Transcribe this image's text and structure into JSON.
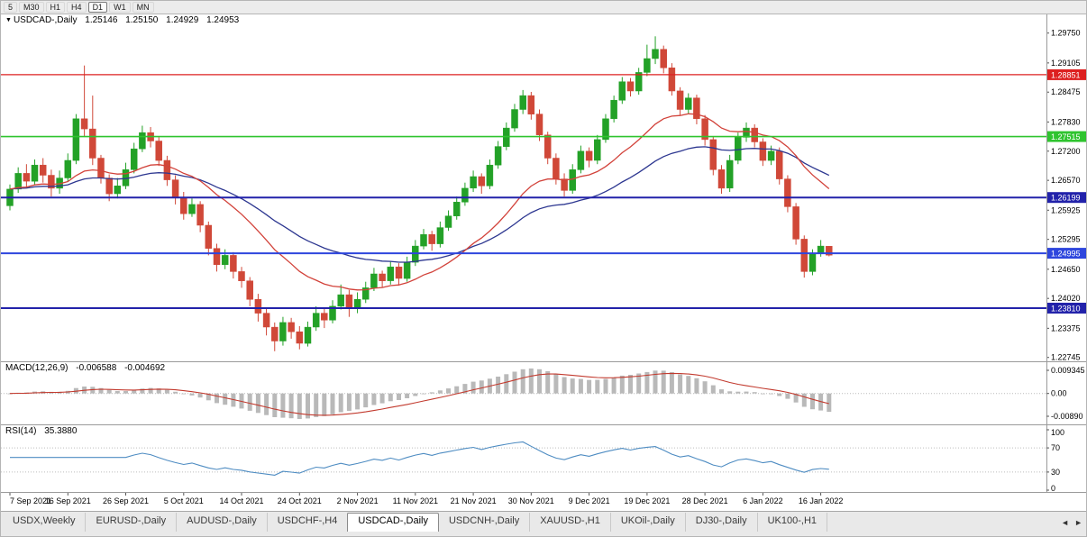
{
  "timeframe_toolbar": {
    "items": [
      "5",
      "M30",
      "H1",
      "H4",
      "D1",
      "W1",
      "MN"
    ],
    "active": "D1"
  },
  "chart_header": {
    "symbol": "USDCAD-,Daily",
    "open": "1.25146",
    "high": "1.25150",
    "low": "1.24929",
    "close": "1.24953"
  },
  "price_axis": {
    "ticks": [
      "1.29750",
      "1.29105",
      "1.28475",
      "1.27830",
      "1.27200",
      "1.26570",
      "1.25925",
      "1.25295",
      "1.24650",
      "1.24020",
      "1.23375",
      "1.22745"
    ]
  },
  "hlines": [
    {
      "value": 1.28851,
      "label": "1.28851",
      "color": "#dd2020",
      "width": 1.2
    },
    {
      "value": 1.27515,
      "label": "1.27515",
      "color": "#2fc42f",
      "width": 1.6
    },
    {
      "value": 1.26199,
      "label": "1.26199",
      "color": "#2222aa",
      "width": 2
    },
    {
      "value": 1.24995,
      "label": "1.24995",
      "color": "#2e46dd",
      "width": 2
    },
    {
      "value": 1.2381,
      "label": "1.23810",
      "color": "#2222aa",
      "width": 2
    }
  ],
  "date_axis": {
    "labels": [
      "7 Sep 2021",
      "16 Sep 2021",
      "26 Sep 2021",
      "5 Oct 2021",
      "14 Oct 2021",
      "24 Oct 2021",
      "2 Nov 2021",
      "11 Nov 2021",
      "21 Nov 2021",
      "30 Nov 2021",
      "9 Dec 2021",
      "19 Dec 2021",
      "28 Dec 2021",
      "6 Jan 2022",
      "16 Jan 2022"
    ]
  },
  "indicators": {
    "macd": {
      "label": "MACD(12,26,9)",
      "value_main": "-0.006588",
      "value_signal": "-0.004692",
      "axis_max": "0.009345",
      "axis_zero": "0.00",
      "axis_min": "-0.00890"
    },
    "rsi": {
      "label": "RSI(14)",
      "value": "35.3880",
      "axis": [
        "100",
        "70",
        "30",
        "0"
      ],
      "levels": [
        70,
        30
      ]
    }
  },
  "tabs": {
    "items": [
      "USDX,Weekly",
      "EURUSD-,Daily",
      "AUDUSD-,Daily",
      "USDCHF-,H4",
      "USDCAD-,Daily",
      "USDCNH-,Daily",
      "XAUUSD-,H1",
      "UKOil-,Daily",
      "DJ30-,Daily",
      "UK100-,H1"
    ],
    "active": "USDCAD-,Daily"
  },
  "tab_scroll": {
    "left_icon": "◄",
    "right_icon": "►"
  },
  "colors": {
    "bull": "#23a127",
    "bear": "#d04838",
    "ma_fast": "#d2423a",
    "ma_slow": "#2c3690",
    "macd_bar": "#b9b9b9",
    "macd_signal": "#c23a2e",
    "rsi_line": "#4e8cc2",
    "axis_text": "#000000",
    "separator": "#9a9a9a",
    "level_dotted": "#bcbcbc"
  },
  "chart_data": {
    "type": "candlestick",
    "symbol": "USDCAD",
    "period": "Daily",
    "ma_periods": {
      "fast": 20,
      "slow": 40
    },
    "macd_params": [
      12,
      26,
      9
    ],
    "rsi_period": 14,
    "price_range_visible": [
      1.2272,
      1.299
    ],
    "ohlc": [
      [
        1.2602,
        1.2648,
        1.2592,
        1.2638
      ],
      [
        1.2638,
        1.2685,
        1.263,
        1.2672
      ],
      [
        1.2672,
        1.2692,
        1.264,
        1.2655
      ],
      [
        1.2655,
        1.2702,
        1.2648,
        1.269
      ],
      [
        1.269,
        1.2705,
        1.2652,
        1.2668
      ],
      [
        1.2668,
        1.268,
        1.2622,
        1.264
      ],
      [
        1.264,
        1.2678,
        1.2628,
        1.2662
      ],
      [
        1.2662,
        1.2715,
        1.2655,
        1.27
      ],
      [
        1.27,
        1.28,
        1.2692,
        1.279
      ],
      [
        1.279,
        1.2905,
        1.2752,
        1.2768
      ],
      [
        1.2768,
        1.284,
        1.269,
        1.2705
      ],
      [
        1.2705,
        1.2712,
        1.265,
        1.2662
      ],
      [
        1.2662,
        1.267,
        1.2612,
        1.2628
      ],
      [
        1.2628,
        1.2662,
        1.2618,
        1.2645
      ],
      [
        1.2645,
        1.2695,
        1.2638,
        1.268
      ],
      [
        1.268,
        1.2738,
        1.2672,
        1.2725
      ],
      [
        1.2725,
        1.2775,
        1.2718,
        1.276
      ],
      [
        1.276,
        1.2772,
        1.2728,
        1.2742
      ],
      [
        1.2742,
        1.275,
        1.2688,
        1.27
      ],
      [
        1.27,
        1.271,
        1.2645,
        1.2658
      ],
      [
        1.2658,
        1.2668,
        1.2605,
        1.262
      ],
      [
        1.262,
        1.2632,
        1.2572,
        1.2585
      ],
      [
        1.2585,
        1.2618,
        1.2578,
        1.2605
      ],
      [
        1.2605,
        1.2612,
        1.2545,
        1.256
      ],
      [
        1.256,
        1.2568,
        1.2495,
        1.251
      ],
      [
        1.251,
        1.252,
        1.246,
        1.2475
      ],
      [
        1.2475,
        1.2508,
        1.2465,
        1.2495
      ],
      [
        1.2495,
        1.2502,
        1.2445,
        1.246
      ],
      [
        1.246,
        1.247,
        1.2425,
        1.244
      ],
      [
        1.244,
        1.2448,
        1.2385,
        1.24
      ],
      [
        1.24,
        1.2412,
        1.2352,
        1.237
      ],
      [
        1.237,
        1.238,
        1.2322,
        1.234
      ],
      [
        1.234,
        1.235,
        1.2288,
        1.231
      ],
      [
        1.231,
        1.2362,
        1.23,
        1.235
      ],
      [
        1.235,
        1.236,
        1.2315,
        1.233
      ],
      [
        1.233,
        1.2342,
        1.2292,
        1.2305
      ],
      [
        1.2305,
        1.2352,
        1.2298,
        1.234
      ],
      [
        1.234,
        1.2385,
        1.2332,
        1.237
      ],
      [
        1.237,
        1.238,
        1.2338,
        1.2355
      ],
      [
        1.2355,
        1.2398,
        1.2348,
        1.2385
      ],
      [
        1.2385,
        1.2432,
        1.2378,
        1.241
      ],
      [
        1.241,
        1.242,
        1.2362,
        1.238
      ],
      [
        1.238,
        1.2415,
        1.237,
        1.24
      ],
      [
        1.24,
        1.2438,
        1.2392,
        1.2425
      ],
      [
        1.2425,
        1.2468,
        1.2418,
        1.2455
      ],
      [
        1.2455,
        1.2462,
        1.2425,
        1.244
      ],
      [
        1.244,
        1.2482,
        1.2432,
        1.247
      ],
      [
        1.247,
        1.2478,
        1.243,
        1.2445
      ],
      [
        1.2445,
        1.2492,
        1.2438,
        1.248
      ],
      [
        1.248,
        1.2528,
        1.2472,
        1.2515
      ],
      [
        1.2515,
        1.2552,
        1.2508,
        1.254
      ],
      [
        1.254,
        1.2548,
        1.2505,
        1.252
      ],
      [
        1.252,
        1.2568,
        1.2512,
        1.2555
      ],
      [
        1.2555,
        1.2592,
        1.2548,
        1.258
      ],
      [
        1.258,
        1.2622,
        1.2572,
        1.261
      ],
      [
        1.261,
        1.2652,
        1.2602,
        1.264
      ],
      [
        1.264,
        1.2678,
        1.2632,
        1.2665
      ],
      [
        1.2665,
        1.2672,
        1.2628,
        1.2645
      ],
      [
        1.2645,
        1.2702,
        1.2638,
        1.269
      ],
      [
        1.269,
        1.2742,
        1.2682,
        1.273
      ],
      [
        1.273,
        1.2782,
        1.2722,
        1.277
      ],
      [
        1.277,
        1.2822,
        1.2762,
        1.281
      ],
      [
        1.281,
        1.2852,
        1.28,
        1.284
      ],
      [
        1.284,
        1.2848,
        1.2788,
        1.28
      ],
      [
        1.28,
        1.281,
        1.2742,
        1.2755
      ],
      [
        1.2755,
        1.2762,
        1.2692,
        1.2705
      ],
      [
        1.2705,
        1.2715,
        1.2648,
        1.266
      ],
      [
        1.266,
        1.2672,
        1.2622,
        1.2635
      ],
      [
        1.2635,
        1.2692,
        1.2628,
        1.268
      ],
      [
        1.268,
        1.2732,
        1.2672,
        1.272
      ],
      [
        1.272,
        1.2728,
        1.2685,
        1.27
      ],
      [
        1.27,
        1.2755,
        1.2692,
        1.2745
      ],
      [
        1.2745,
        1.28,
        1.2738,
        1.279
      ],
      [
        1.279,
        1.284,
        1.2782,
        1.283
      ],
      [
        1.283,
        1.288,
        1.2822,
        1.287
      ],
      [
        1.287,
        1.2878,
        1.2838,
        1.285
      ],
      [
        1.285,
        1.29,
        1.2842,
        1.289
      ],
      [
        1.289,
        1.295,
        1.2882,
        1.292
      ],
      [
        1.292,
        1.2968,
        1.2908,
        1.294
      ],
      [
        1.294,
        1.2948,
        1.2888,
        1.29
      ],
      [
        1.29,
        1.291,
        1.284,
        1.285
      ],
      [
        1.285,
        1.2858,
        1.2798,
        1.281
      ],
      [
        1.281,
        1.2845,
        1.28,
        1.2835
      ],
      [
        1.2835,
        1.2842,
        1.2778,
        1.279
      ],
      [
        1.279,
        1.2798,
        1.2732,
        1.2745
      ],
      [
        1.2745,
        1.2752,
        1.2668,
        1.268
      ],
      [
        1.268,
        1.269,
        1.2628,
        1.264
      ],
      [
        1.264,
        1.2712,
        1.2632,
        1.27
      ],
      [
        1.27,
        1.276,
        1.2692,
        1.275
      ],
      [
        1.275,
        1.2782,
        1.274,
        1.277
      ],
      [
        1.277,
        1.2778,
        1.2728,
        1.274
      ],
      [
        1.274,
        1.2748,
        1.2688,
        1.27
      ],
      [
        1.27,
        1.2732,
        1.269,
        1.272
      ],
      [
        1.272,
        1.2728,
        1.2648,
        1.266
      ],
      [
        1.266,
        1.2668,
        1.2588,
        1.26
      ],
      [
        1.26,
        1.2608,
        1.2518,
        1.253
      ],
      [
        1.253,
        1.2538,
        1.2447,
        1.246
      ],
      [
        1.246,
        1.2508,
        1.2452,
        1.25
      ],
      [
        1.25,
        1.2528,
        1.2492,
        1.2515
      ],
      [
        1.25146,
        1.2515,
        1.24929,
        1.24953
      ]
    ]
  }
}
